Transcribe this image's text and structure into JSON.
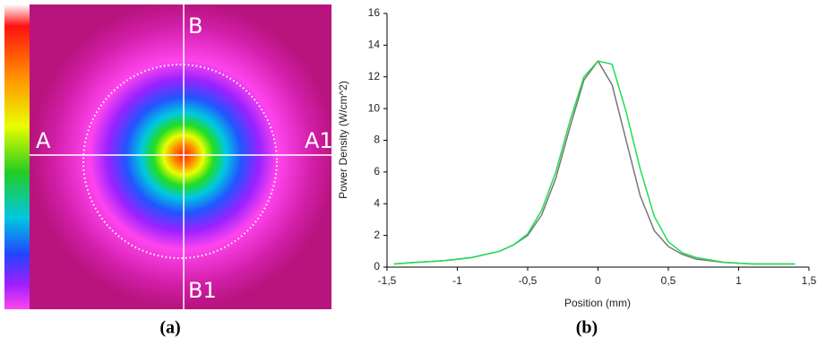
{
  "panel_a": {
    "labels": {
      "left": "A",
      "right": "A1",
      "top": "B",
      "bottom": "B1"
    }
  },
  "captions": [
    "(a)",
    "(b)"
  ],
  "chart_data": {
    "type": "line",
    "x_label": "Position (mm)",
    "y_label": "Power Density (W/cm^2)",
    "x": [
      -1.45,
      -1.3,
      -1.1,
      -0.9,
      -0.7,
      -0.6,
      -0.5,
      -0.4,
      -0.3,
      -0.2,
      -0.1,
      0,
      0.1,
      0.2,
      0.3,
      0.4,
      0.5,
      0.6,
      0.7,
      0.9,
      1.1,
      1.3,
      1.4
    ],
    "series": [
      {
        "color": "#777777",
        "values": [
          0.2,
          0.3,
          0.4,
          0.6,
          1.0,
          1.4,
          2.0,
          3.3,
          5.6,
          8.8,
          11.8,
          13.0,
          11.5,
          8.0,
          4.5,
          2.3,
          1.3,
          0.8,
          0.5,
          0.3,
          0.2,
          0.2,
          0.2
        ]
      },
      {
        "color": "#22dd55",
        "values": [
          0.2,
          0.3,
          0.4,
          0.6,
          1.0,
          1.4,
          2.1,
          3.6,
          6.0,
          9.2,
          12.0,
          13.0,
          12.8,
          9.8,
          6.2,
          3.2,
          1.6,
          0.9,
          0.6,
          0.3,
          0.2,
          0.2,
          0.2
        ]
      }
    ],
    "xlim": [
      -1.5,
      1.5
    ],
    "ylim": [
      0,
      16
    ],
    "xticks": [
      {
        "value": -1.5,
        "label": "-1,5"
      },
      -1,
      {
        "value": -0.5,
        "label": "-0,5"
      },
      0,
      {
        "value": 0.5,
        "label": "0,5"
      },
      1,
      {
        "value": 1.5,
        "label": "1,5"
      }
    ],
    "yticks": [
      0,
      2,
      4,
      6,
      8,
      10,
      12,
      14,
      16
    ]
  }
}
